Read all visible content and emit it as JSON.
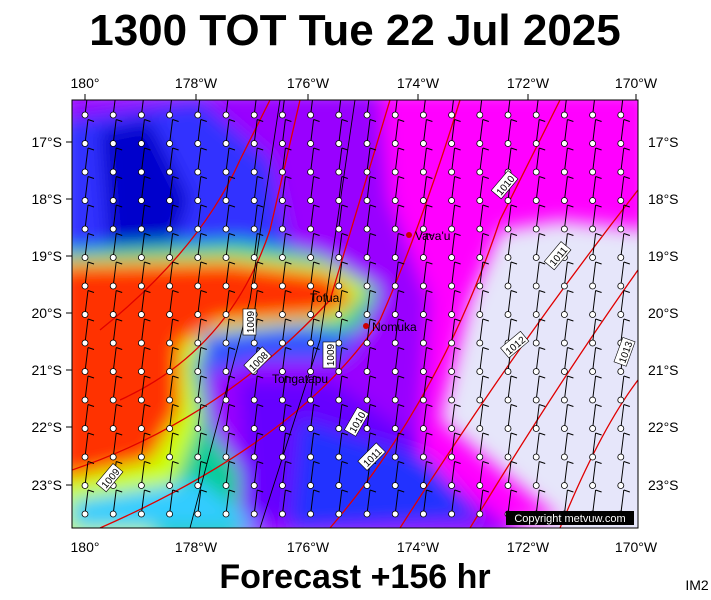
{
  "title": "1300 TOT Tue 22 Jul 2025",
  "footer": "Forecast +156 hr",
  "corner_label": "IM2",
  "copyright": "Copyright metvuw.com",
  "longitude_labels": [
    "180°",
    "178°W",
    "176°W",
    "174°W",
    "172°W",
    "170°W"
  ],
  "latitude_labels": [
    "17°S",
    "18°S",
    "19°S",
    "20°S",
    "21°S",
    "22°S",
    "23°S"
  ],
  "places": [
    "Vava'u",
    "Tofua",
    "Nomuka",
    "Tongatapu"
  ],
  "isobar_labels": [
    "1010",
    "1011",
    "1012",
    "1013",
    "1009",
    "1008",
    "1009",
    "1010",
    "1011",
    "1009"
  ]
}
